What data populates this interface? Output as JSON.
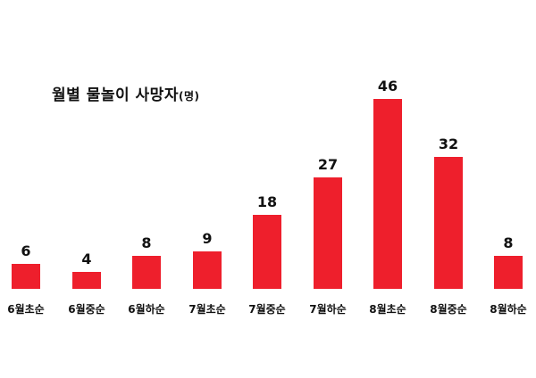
{
  "chart_data": {
    "type": "bar",
    "title": "월별 물놀이 사망자",
    "title_unit": "(명)",
    "categories": [
      "6월초순",
      "6월중순",
      "6월하순",
      "7월초순",
      "7월중순",
      "7월하순",
      "8월초순",
      "8월중순",
      "8월하순"
    ],
    "values": [
      6,
      4,
      8,
      9,
      18,
      27,
      46,
      32,
      8
    ],
    "xlabel": "",
    "ylabel": "",
    "ylim": [
      0,
      46
    ],
    "grid": false,
    "legend": "none",
    "bar_color": "#ee1f2c",
    "data_labels": true
  }
}
